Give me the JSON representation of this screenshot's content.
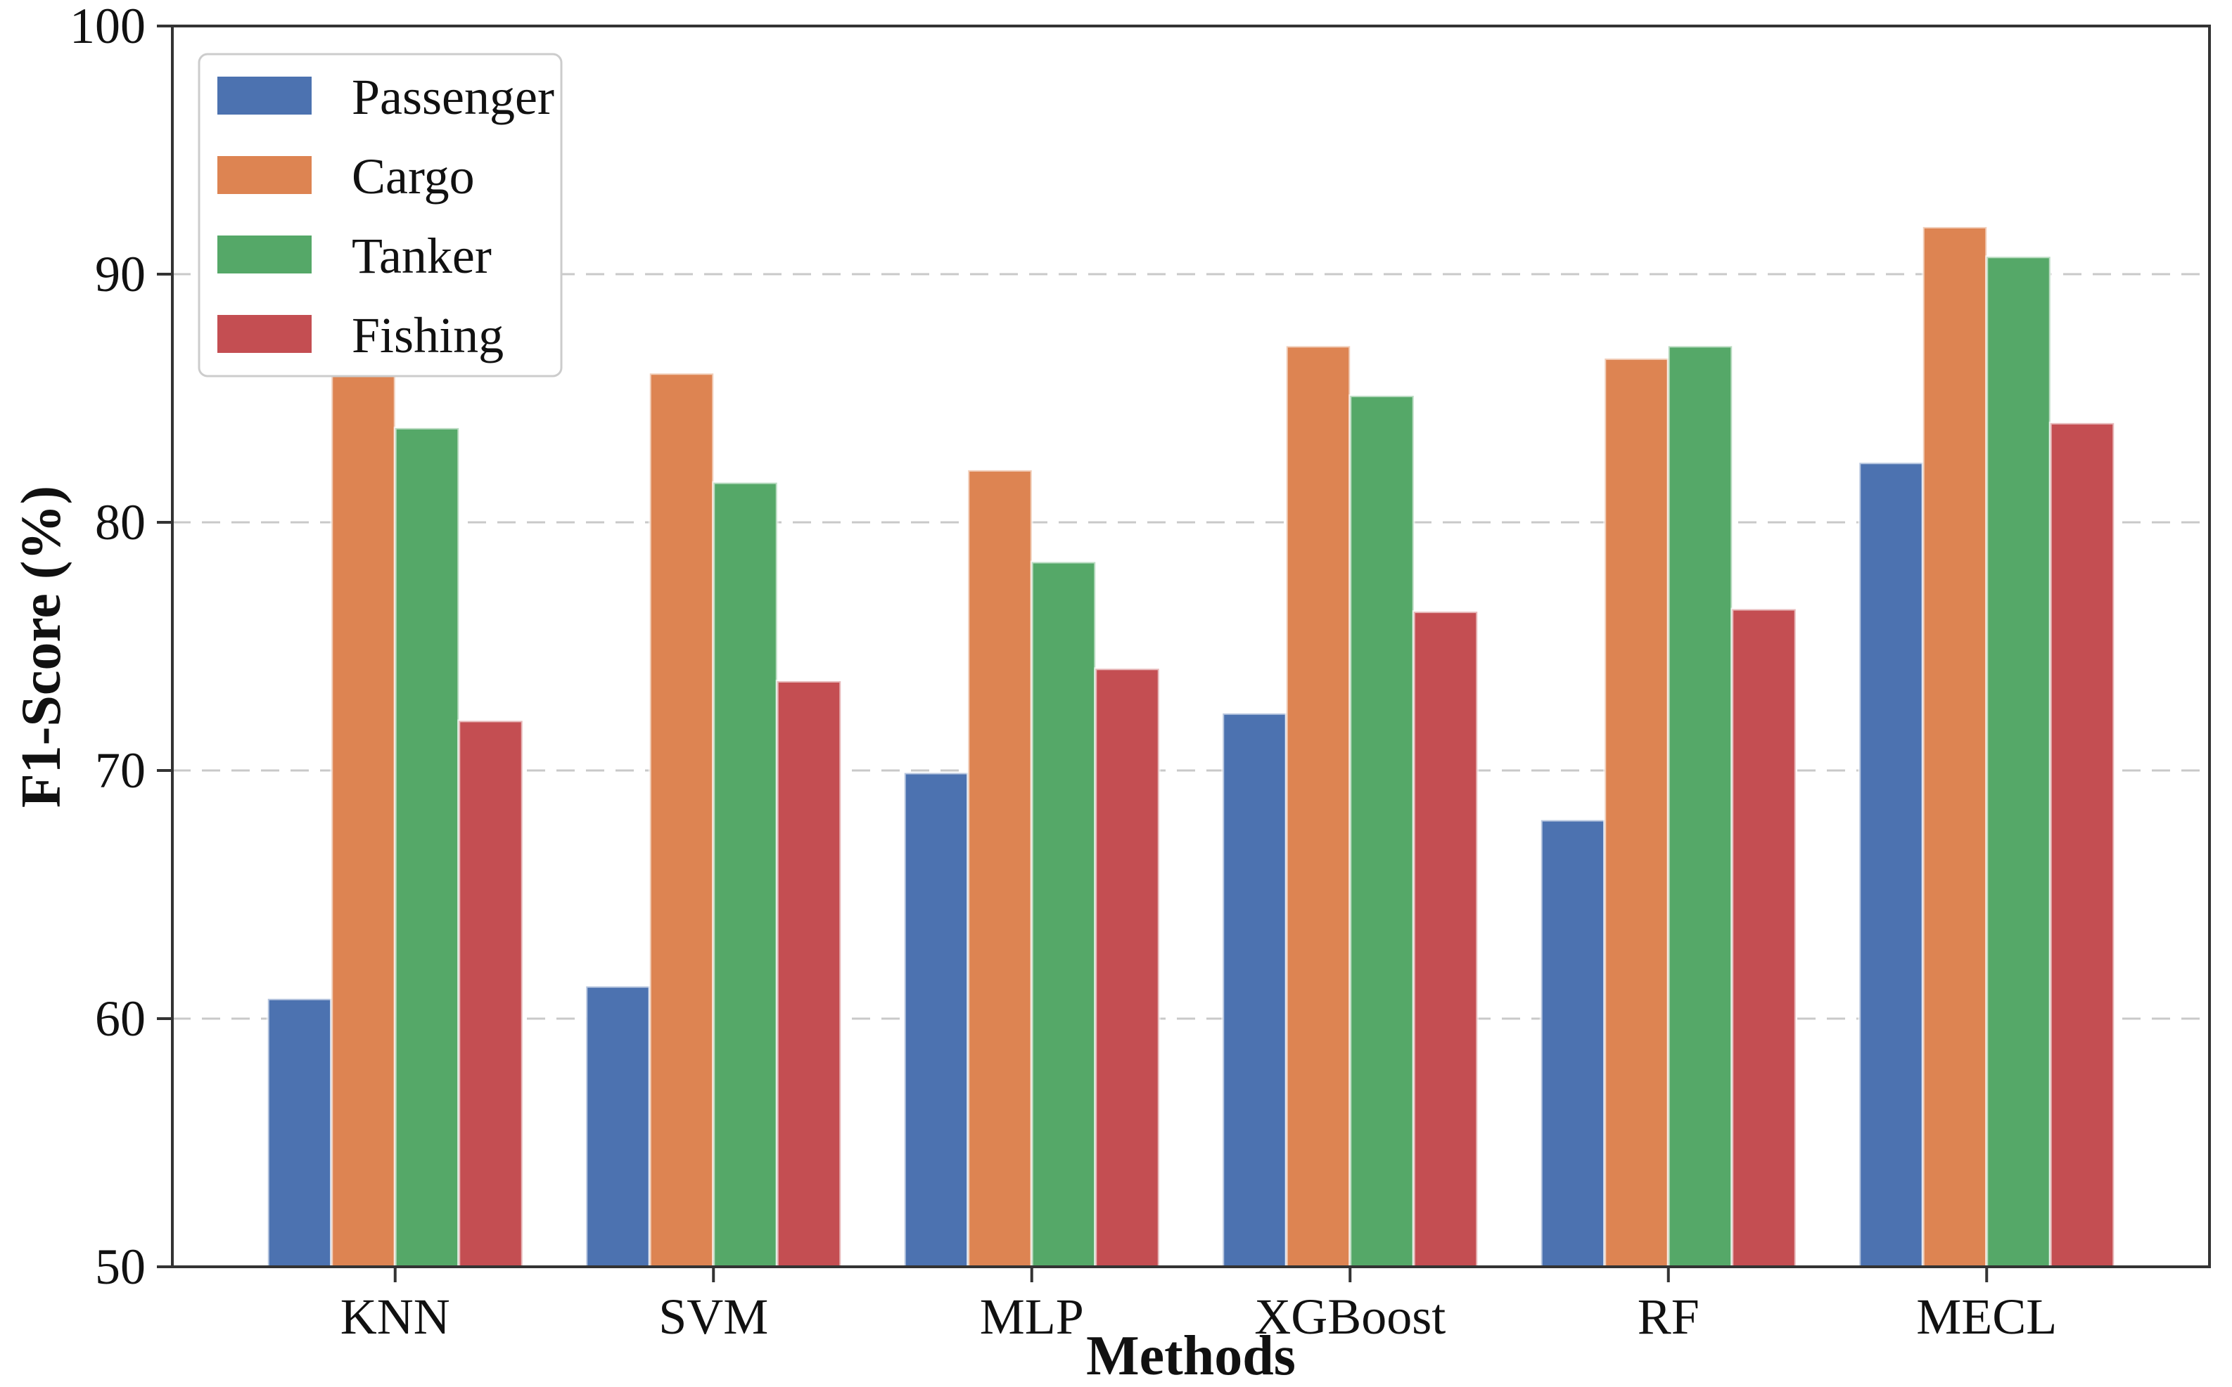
{
  "chart_data": {
    "type": "bar",
    "title": "",
    "xlabel": "Methods",
    "ylabel": "F1-Score (%)",
    "categories": [
      "KNN",
      "SVM",
      "MLP",
      "XGBoost",
      "RF",
      "MECL"
    ],
    "series": [
      {
        "name": "Passenger",
        "color": "#4C72B0",
        "values": [
          60.8,
          61.3,
          69.9,
          72.3,
          68.0,
          82.4
        ]
      },
      {
        "name": "Cargo",
        "color": "#DD8452",
        "values": [
          86.5,
          86.0,
          82.1,
          87.1,
          86.6,
          91.9
        ]
      },
      {
        "name": "Tanker",
        "color": "#55A868",
        "values": [
          83.8,
          81.6,
          78.4,
          85.1,
          87.1,
          90.7
        ]
      },
      {
        "name": "Fishing",
        "color": "#C44E52",
        "values": [
          72.0,
          73.6,
          74.1,
          76.4,
          76.5,
          84.0
        ]
      }
    ],
    "ylim": [
      50,
      100
    ],
    "xlim": [
      -0.7,
      5.7
    ],
    "yticks": [
      "50",
      "60",
      "70",
      "80",
      "90",
      "100"
    ],
    "grid_values": [
      60,
      70,
      80,
      90
    ],
    "grid_on": true,
    "grid_style": "dashed",
    "grid_color": "#c9c9c9",
    "spine_color": "#333333",
    "bar_width": 0.2,
    "legend_position": "upper-left",
    "legend_labels": [
      "Passenger",
      "Cargo",
      "Tanker",
      "Fishing"
    ]
  }
}
